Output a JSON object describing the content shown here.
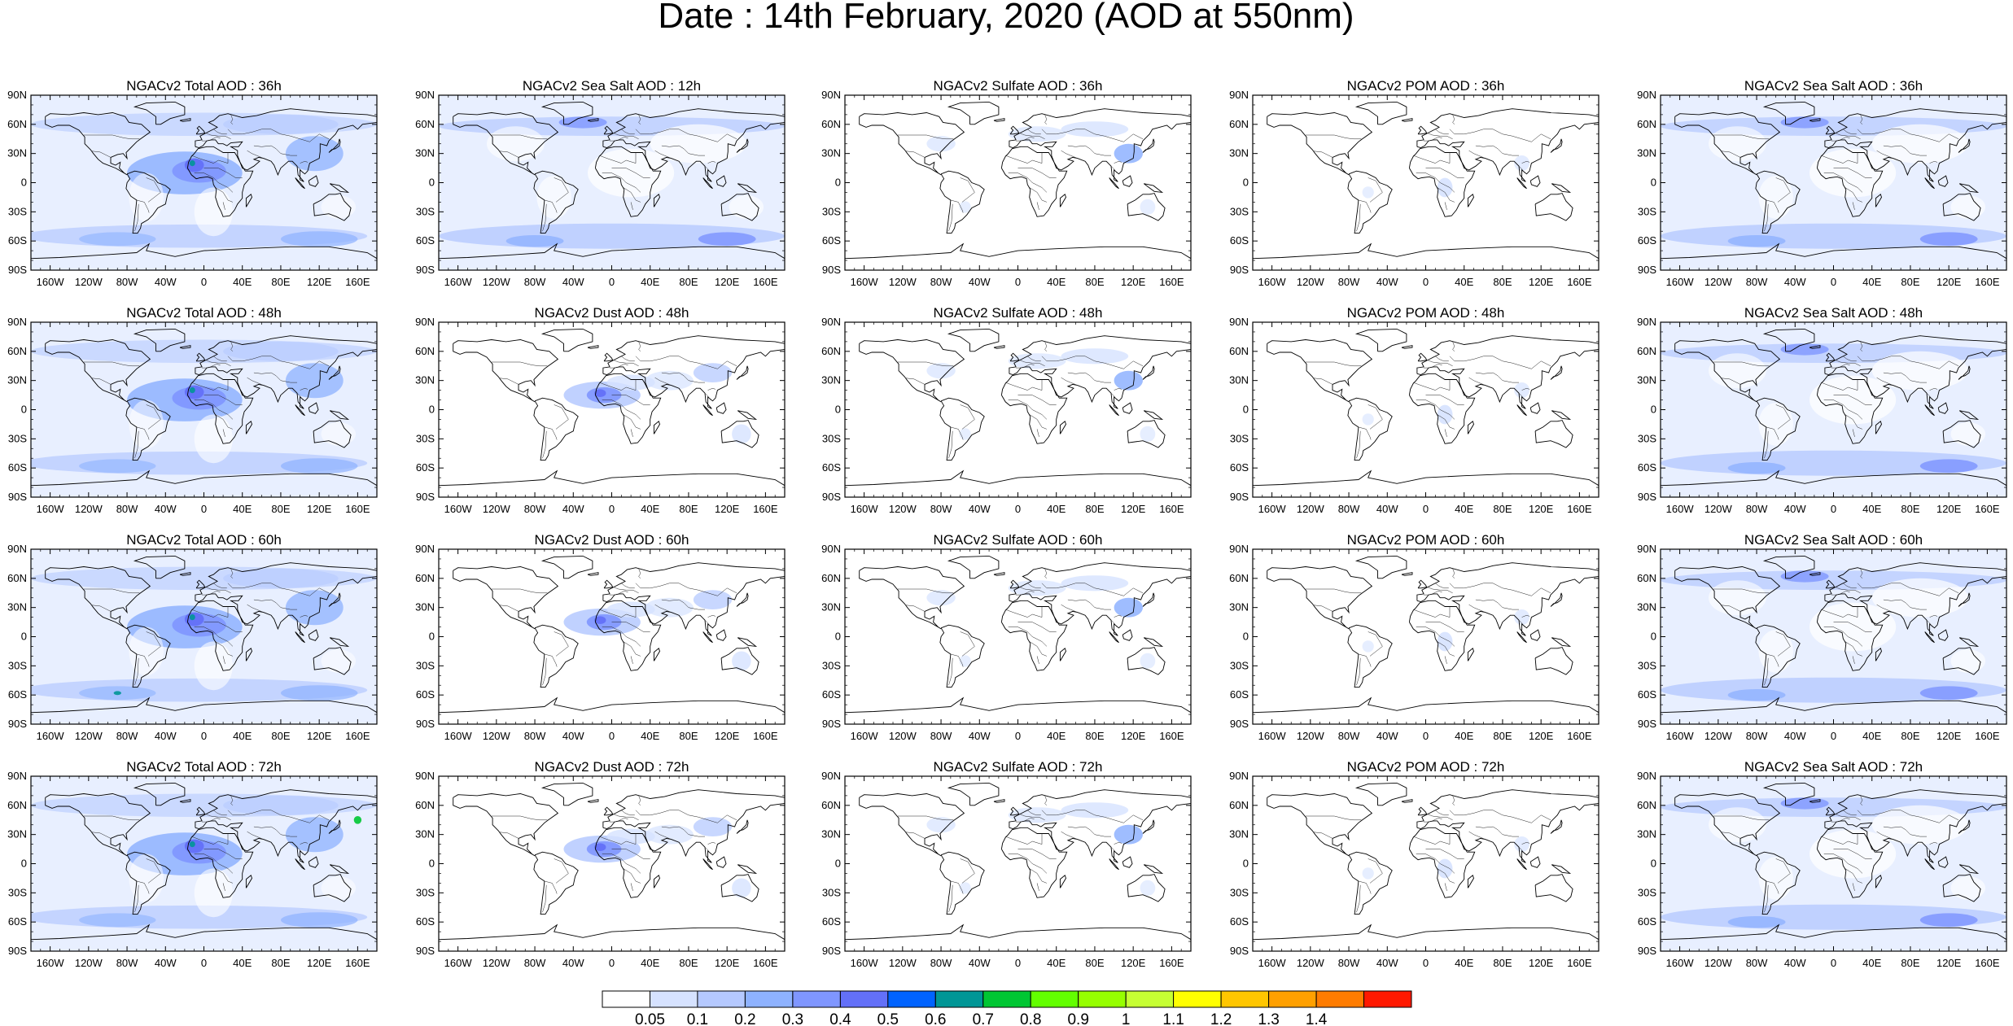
{
  "figure": {
    "title": "Date : 14th February, 2020 (AOD at 550nm)"
  },
  "lat_ticks": [
    "90N",
    "60N",
    "30N",
    "0",
    "30S",
    "60S",
    "90S"
  ],
  "lon_ticks": [
    "160W",
    "120W",
    "80W",
    "40W",
    "0",
    "40E",
    "80E",
    "120E",
    "160E"
  ],
  "panel_titles": [
    [
      "NGACv2 Total AOD : 36h",
      "NGACv2 Sea Salt  AOD : 12h",
      "NGACv2 Sulfate AOD : 36h",
      "NGACv2 POM AOD : 36h",
      "NGACv2 Sea Salt AOD : 36h"
    ],
    [
      "NGACv2 Total AOD : 48h",
      "NGACv2 Dust AOD : 48h",
      "NGACv2 Sulfate AOD : 48h",
      "NGACv2 POM AOD : 48h",
      "NGACv2 Sea Salt AOD : 48h"
    ],
    [
      "NGACv2 Total AOD : 60h",
      "NGACv2 Dust AOD : 60h",
      "NGACv2 Sulfate AOD : 60h",
      "NGACv2 POM AOD : 60h",
      "NGACv2 Sea Salt AOD : 60h"
    ],
    [
      "NGACv2 Total AOD : 72h",
      "NGACv2 Dust AOD : 72h",
      "NGACv2 Sulfate AOD : 72h",
      "NGACv2 POM AOD : 72h",
      "NGACv2 Sea Salt  AOD : 72h"
    ]
  ],
  "colorbar": {
    "labels": [
      "0.05",
      "0.1",
      "0.2",
      "0.3",
      "0.4",
      "0.5",
      "0.6",
      "0.7",
      "0.8",
      "0.9",
      "1",
      "1.1",
      "1.2",
      "1.3",
      "1.4"
    ],
    "colors": [
      "#ffffff",
      "#d6e2ff",
      "#b5c9ff",
      "#8eb2ff",
      "#7f96ff",
      "#6370f8",
      "#0063ff",
      "#009696",
      "#00c633",
      "#63ff00",
      "#96ff00",
      "#c6ff33",
      "#ffff00",
      "#ffc600",
      "#ffa000",
      "#ff7c00",
      "#ff1900"
    ]
  }
}
